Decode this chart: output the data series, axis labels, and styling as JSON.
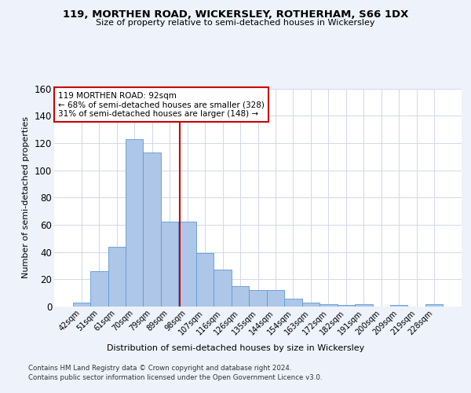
{
  "title": "119, MORTHEN ROAD, WICKERSLEY, ROTHERHAM, S66 1DX",
  "subtitle": "Size of property relative to semi-detached houses in Wickersley",
  "xlabel": "Distribution of semi-detached houses by size in Wickersley",
  "ylabel": "Number of semi-detached properties",
  "bin_labels": [
    "42sqm",
    "51sqm",
    "61sqm",
    "70sqm",
    "79sqm",
    "89sqm",
    "98sqm",
    "107sqm",
    "116sqm",
    "126sqm",
    "135sqm",
    "144sqm",
    "154sqm",
    "163sqm",
    "172sqm",
    "182sqm",
    "191sqm",
    "200sqm",
    "209sqm",
    "219sqm",
    "228sqm"
  ],
  "bar_heights": [
    3,
    26,
    44,
    123,
    113,
    62,
    62,
    39,
    27,
    15,
    12,
    12,
    6,
    3,
    2,
    1,
    2,
    0,
    1,
    0,
    2
  ],
  "bar_color": "#aec6e8",
  "bar_edge_color": "#5b9bd5",
  "vline_x": 5.56,
  "vline_color": "#cc0000",
  "annotation_text": "119 MORTHEN ROAD: 92sqm\n← 68% of semi-detached houses are smaller (328)\n31% of semi-detached houses are larger (148) →",
  "annotation_box_color": "#ffffff",
  "annotation_box_edge_color": "#cc0000",
  "ylim": [
    0,
    160
  ],
  "yticks": [
    0,
    20,
    40,
    60,
    80,
    100,
    120,
    140,
    160
  ],
  "footer_line1": "Contains HM Land Registry data © Crown copyright and database right 2024.",
  "footer_line2": "Contains public sector information licensed under the Open Government Licence v3.0.",
  "bg_color": "#eef2fa",
  "plot_bg_color": "#ffffff",
  "grid_color": "#d0d8e8"
}
